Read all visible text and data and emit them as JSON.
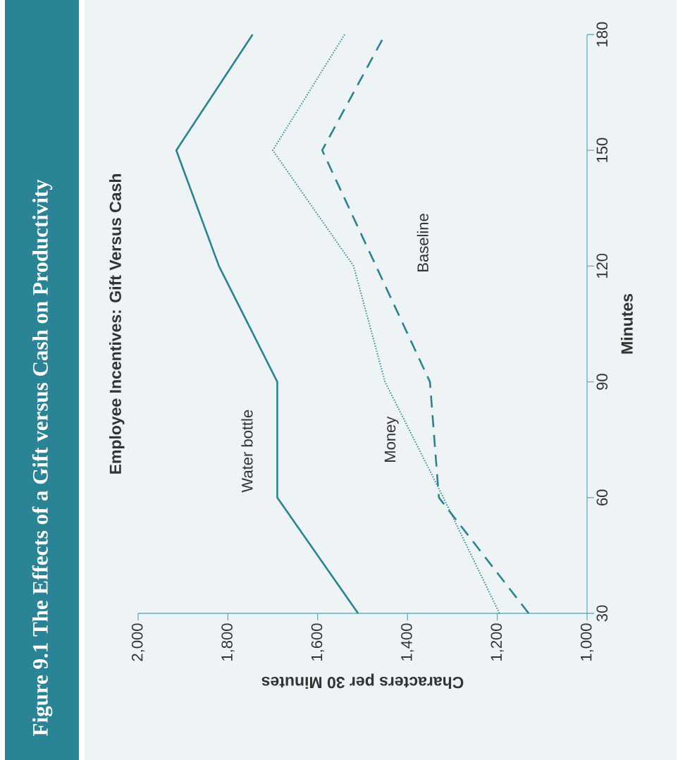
{
  "chart_data": {
    "type": "line",
    "title": "Figure 9.1  The Effects of a Gift versus Cash on Productivity",
    "subtitle": "Employee Incentives: Gift Versus Cash",
    "xlabel": "Characters per 30 Minutes",
    "ylabel": "Minutes",
    "series": [
      {
        "name": "Water bottle",
        "color": "#2b8290",
        "line_style": "solid",
        "x": [
          1510,
          1690,
          1690,
          1820,
          1915,
          1745
        ],
        "values": [
          30,
          60,
          90,
          120,
          150,
          180
        ]
      },
      {
        "name": "Money",
        "color": "#2b8290",
        "line_style": "dotted",
        "x": [
          1195,
          1320,
          1450,
          1520,
          1700,
          1540
        ],
        "values": [
          30,
          60,
          90,
          120,
          150,
          180
        ]
      },
      {
        "name": "Baseline",
        "color": "#2b8290",
        "line_style": "dashed",
        "x": [
          1130,
          1330,
          1350,
          1470,
          1590,
          1450
        ],
        "values": [
          30,
          60,
          90,
          120,
          150,
          180
        ]
      }
    ],
    "ylim": [
      30,
      180
    ],
    "yticks": [
      30,
      60,
      90,
      120,
      150,
      180
    ],
    "xlim": [
      2000,
      1000
    ],
    "xticks": [
      {
        "value": 2000,
        "label": "2,000"
      },
      {
        "value": 1800,
        "label": "1,800"
      },
      {
        "value": 1600,
        "label": "1,600"
      },
      {
        "value": 1400,
        "label": "1,400"
      },
      {
        "value": 1200,
        "label": "1,200"
      },
      {
        "value": 1000,
        "label": "1,000"
      }
    ]
  }
}
